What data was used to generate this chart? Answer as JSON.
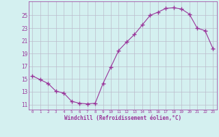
{
  "x": [
    0,
    1,
    2,
    3,
    4,
    5,
    6,
    7,
    8,
    9,
    10,
    11,
    12,
    13,
    14,
    15,
    16,
    17,
    18,
    19,
    20,
    21,
    22,
    23
  ],
  "y": [
    15.5,
    14.9,
    14.3,
    13.1,
    12.8,
    11.5,
    11.2,
    11.1,
    11.2,
    14.3,
    16.9,
    19.5,
    20.8,
    22.0,
    23.5,
    25.0,
    25.5,
    26.1,
    26.2,
    26.0,
    25.2,
    23.0,
    22.6,
    19.8
  ],
  "line_color": "#993399",
  "marker": "+",
  "marker_size": 4,
  "background_color": "#d4f0f0",
  "grid_color": "#bbbbcc",
  "xlabel": "Windchill (Refroidissement éolien,°C)",
  "xlabel_color": "#993399",
  "tick_color": "#993399",
  "ylabel_ticks": [
    11,
    13,
    15,
    17,
    19,
    21,
    23,
    25
  ],
  "ylim": [
    10.2,
    27.2
  ],
  "xlim": [
    -0.5,
    23.5
  ],
  "xlabel_fontsize": 5.5,
  "xtick_fontsize": 4.2,
  "ytick_fontsize": 5.5
}
